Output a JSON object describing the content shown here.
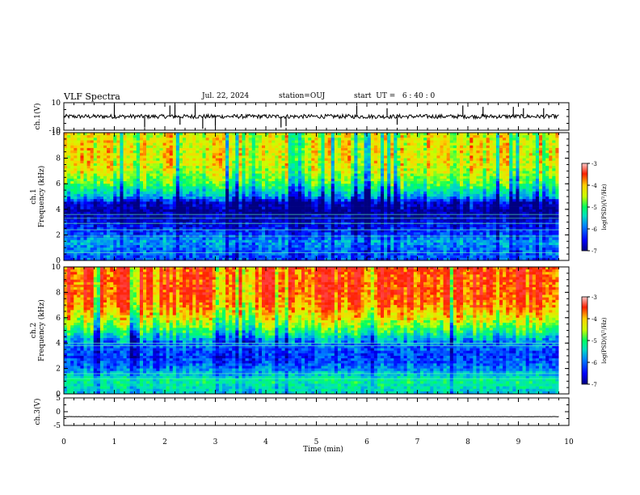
{
  "header": {
    "title": "VLF Spectra",
    "date": "Jul. 22, 2024",
    "station": "station=OUJ",
    "start_ut": "start  UT =   6 : 40 : 0"
  },
  "colors": {
    "spectrum_scale": [
      "#000080",
      "#0000ff",
      "#0080ff",
      "#00e0c0",
      "#00ff60",
      "#c8ff00",
      "#ffd000",
      "#ff2000",
      "#ff4040"
    ],
    "trace": "#000000",
    "axis": "#000000",
    "background": "#ffffff"
  },
  "chart_data": [
    {
      "type": "line",
      "panel": "ch1-waveform",
      "ylabel": "ch.1(V)",
      "ylim": [
        -10,
        10
      ],
      "yticks": [
        "10",
        "-10"
      ],
      "x_range_min": [
        0,
        9.8
      ],
      "baseline": 0,
      "noise_amplitude": 1.5,
      "spikes": [
        {
          "x": 1.0,
          "y": 9
        },
        {
          "x": 1.6,
          "y": -8
        },
        {
          "x": 2.1,
          "y": 8
        },
        {
          "x": 2.2,
          "y": 9
        },
        {
          "x": 2.3,
          "y": -6
        },
        {
          "x": 2.6,
          "y": 9
        },
        {
          "x": 2.75,
          "y": -9
        },
        {
          "x": 3.0,
          "y": -7
        },
        {
          "x": 4.3,
          "y": -8
        },
        {
          "x": 4.4,
          "y": -7
        },
        {
          "x": 5.8,
          "y": 8
        },
        {
          "x": 6.4,
          "y": 6
        },
        {
          "x": 6.6,
          "y": -6
        },
        {
          "x": 7.9,
          "y": 8
        },
        {
          "x": 8.3,
          "y": 7
        },
        {
          "x": 8.9,
          "y": 7
        },
        {
          "x": 9.1,
          "y": 6
        },
        {
          "x": 9.5,
          "y": 6
        }
      ]
    },
    {
      "type": "heatmap",
      "panel": "ch1-spectrogram",
      "ylabel": "ch.1\nFrequency (kHz)",
      "ylim": [
        0,
        10
      ],
      "yticks": [
        "0",
        "2",
        "4",
        "6",
        "8",
        "10"
      ],
      "x_range_min": [
        0,
        9.8
      ],
      "colorbar_label": "log(PSD)(V²/Hz)",
      "colorbar_ticks": [
        "-3",
        "-4",
        "-5",
        "-6",
        "-7"
      ],
      "colorbar_range": [
        -7,
        -3
      ],
      "level_profile": [
        {
          "f": 0,
          "v": -6.2
        },
        {
          "f": 1,
          "v": -6.0
        },
        {
          "f": 1.5,
          "v": -5.8
        },
        {
          "f": 2,
          "v": -6.2
        },
        {
          "f": 3,
          "v": -6.6
        },
        {
          "f": 3.8,
          "v": -6.9
        },
        {
          "f": 4.5,
          "v": -6.7
        },
        {
          "f": 5,
          "v": -5.8
        },
        {
          "f": 6,
          "v": -4.9
        },
        {
          "f": 7,
          "v": -4.4
        },
        {
          "f": 8,
          "v": -4.2
        },
        {
          "f": 10,
          "v": -4.3
        }
      ],
      "line_frequencies_khz": [
        0.6,
        1.9,
        2.4,
        2.9,
        3.3,
        3.6
      ]
    },
    {
      "type": "heatmap",
      "panel": "ch2-spectrogram",
      "ylabel": "ch.2\nFrequency (kHz)",
      "ylim": [
        0,
        10
      ],
      "yticks": [
        "0",
        "2",
        "4",
        "6",
        "8",
        "10"
      ],
      "x_range_min": [
        0,
        9.8
      ],
      "colorbar_label": "log(PSD)(V²/Hz)",
      "colorbar_ticks": [
        "-3",
        "-4",
        "-5",
        "-6",
        "-7"
      ],
      "colorbar_range": [
        -7,
        -3
      ],
      "level_profile": [
        {
          "f": 0,
          "v": -5.6
        },
        {
          "f": 1,
          "v": -5.2
        },
        {
          "f": 2,
          "v": -6.0
        },
        {
          "f": 3,
          "v": -6.3
        },
        {
          "f": 4,
          "v": -6.0
        },
        {
          "f": 5,
          "v": -5.0
        },
        {
          "f": 6,
          "v": -4.2
        },
        {
          "f": 7,
          "v": -3.7
        },
        {
          "f": 8,
          "v": -3.5
        },
        {
          "f": 10,
          "v": -3.5
        }
      ],
      "line_frequencies_khz": [
        1.2,
        1.6,
        3.8,
        4.0
      ]
    },
    {
      "type": "line",
      "panel": "ch3-waveform",
      "ylabel": "ch.3(V)",
      "ylim": [
        -5,
        5
      ],
      "yticks": [
        "5",
        "0",
        "-5"
      ],
      "x_range_min": [
        0,
        9.8
      ],
      "baseline": -1.8,
      "noise_amplitude": 0.05
    }
  ],
  "x_axis": {
    "label": "Time (min)",
    "ticks": [
      "0",
      "1",
      "2",
      "3",
      "4",
      "5",
      "6",
      "7",
      "8",
      "9",
      "10"
    ],
    "xlim": [
      0,
      10
    ]
  }
}
